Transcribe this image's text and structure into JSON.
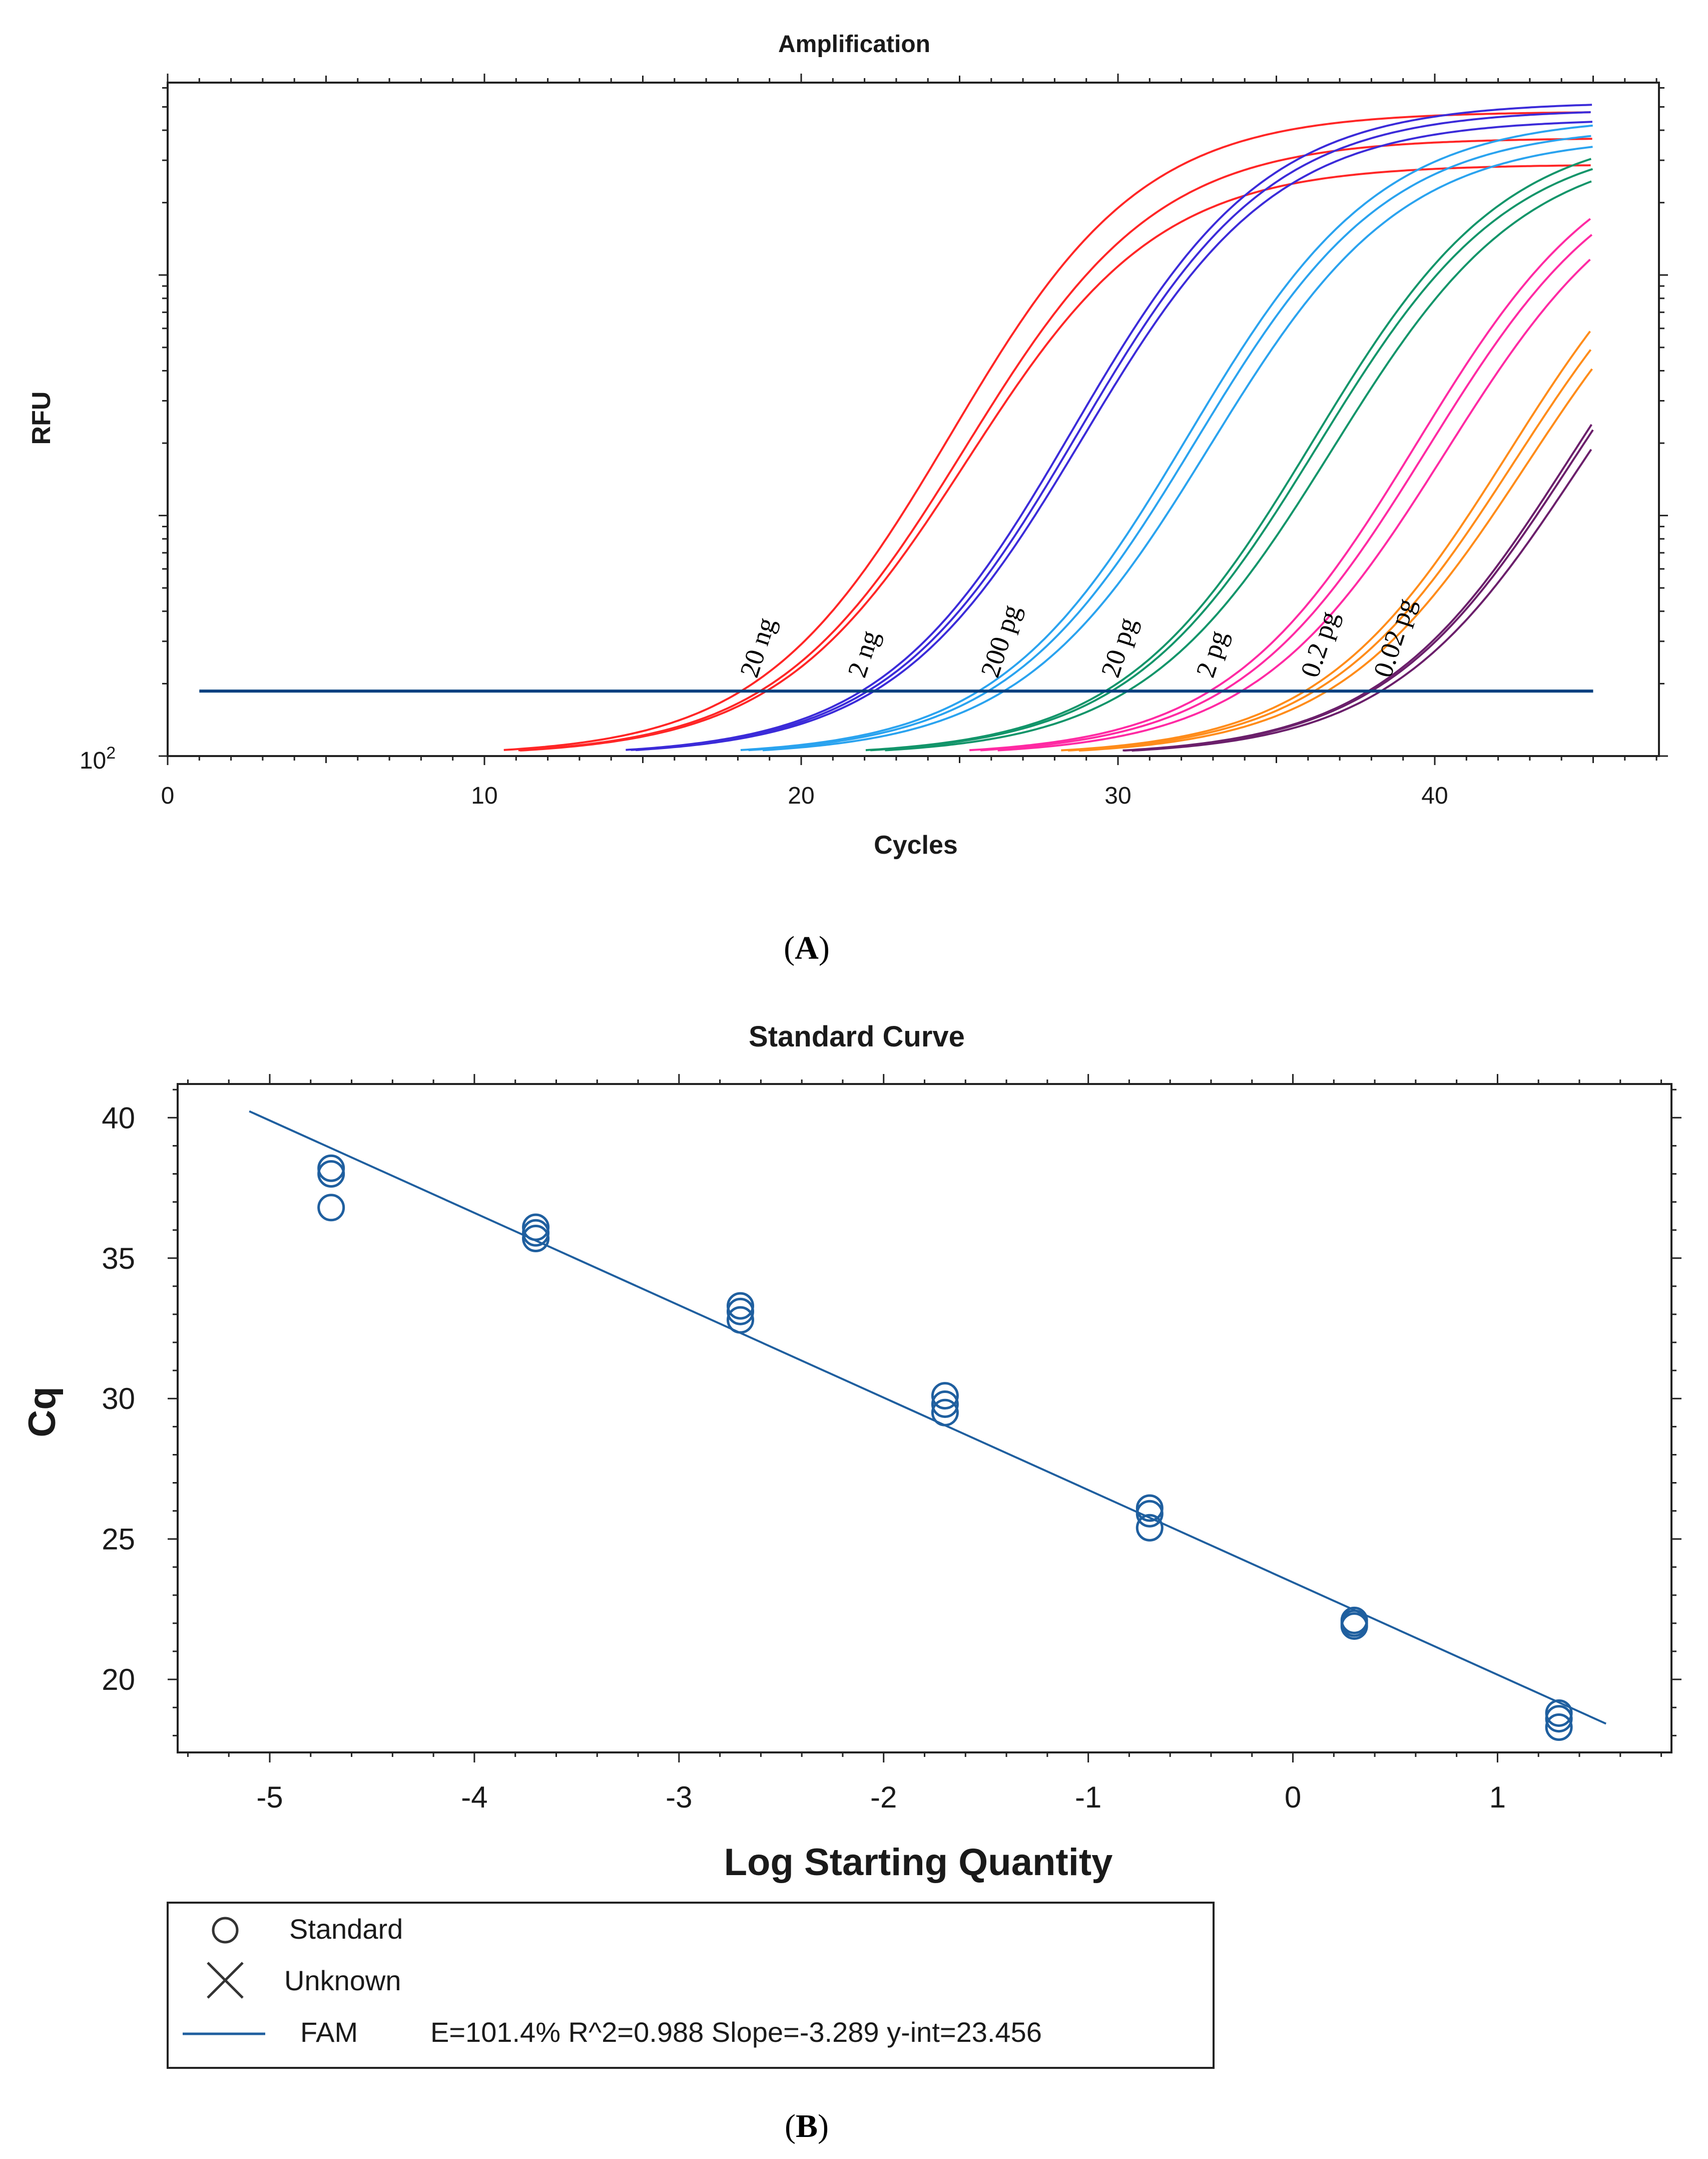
{
  "chart_data": [
    {
      "panel_label": "A",
      "type": "line",
      "title": "Amplification",
      "xlabel": "Cycles",
      "ylabel": "RFU",
      "xlim": [
        0,
        47
      ],
      "ylim_log10": [
        2.0,
        4.8
      ],
      "x_ticks": [
        0,
        10,
        20,
        30,
        40
      ],
      "x_tick_labels": [
        "0",
        "10",
        "20",
        "30",
        "40"
      ],
      "y_axis_label_base": "10",
      "y_axis_label_exponent": "2",
      "threshold_log10": 2.27,
      "threshold_x": [
        1,
        45
      ],
      "threshold_color": "#003f7f",
      "series": [
        {
          "name": "20 ng",
          "color": "#ff2626",
          "cqs": [
            18.1,
            18.7,
            18.9
          ],
          "plateau_log10": [
            4.68,
            4.57,
            4.46
          ],
          "label_x": 18.6,
          "label_log10": 2.32
        },
        {
          "name": "2 ng",
          "color": "#3b2bd9",
          "cqs": [
            21.9,
            22.1,
            22.3
          ],
          "plateau_log10": [
            4.72,
            4.69,
            4.65
          ],
          "label_x": 22.0,
          "label_log10": 2.32
        },
        {
          "name": "200 pg",
          "color": "#2aa3ef",
          "cqs": [
            25.6,
            25.9,
            26.4
          ],
          "plateau_log10": [
            4.66,
            4.62,
            4.58
          ],
          "label_x": 26.2,
          "label_log10": 2.32
        },
        {
          "name": "20 pg",
          "color": "#12956a",
          "cqs": [
            29.6,
            29.8,
            30.3
          ],
          "plateau_log10": [
            4.62,
            4.58,
            4.55
          ],
          "label_x": 30.0,
          "label_log10": 2.32
        },
        {
          "name": "2 pg",
          "color": "#ff2aa3",
          "cqs": [
            32.9,
            33.3,
            33.9
          ],
          "plateau_log10": [
            4.6,
            4.56,
            4.52
          ],
          "label_x": 33.0,
          "label_log10": 2.32
        },
        {
          "name": "0.2 pg",
          "color": "#ff8c1a",
          "cqs": [
            35.9,
            36.2,
            36.6
          ],
          "plateau_log10": [
            4.52,
            4.46,
            4.42
          ],
          "label_x": 36.3,
          "label_log10": 2.32
        },
        {
          "name": "0.02 pg",
          "color": "#6b1f6b",
          "cqs": [
            37.9,
            38.0,
            38.3
          ],
          "plateau_log10": [
            4.48,
            4.44,
            4.4
          ],
          "label_x": 38.6,
          "label_log10": 2.32
        }
      ]
    },
    {
      "panel_label": "B",
      "type": "scatter",
      "title": "Standard Curve",
      "xlabel": "Log Starting Quantity",
      "ylabel": "Cq",
      "xlim": [
        -5.45,
        1.85
      ],
      "ylim": [
        17.4,
        41.2
      ],
      "x_ticks": [
        -5,
        -4,
        -3,
        -2,
        -1,
        0,
        1
      ],
      "x_tick_labels": [
        "-5",
        "-4",
        "-3",
        "-2",
        "-1",
        "0",
        "1"
      ],
      "y_ticks": [
        20,
        25,
        30,
        35,
        40
      ],
      "y_tick_labels": [
        "20",
        "25",
        "30",
        "35",
        "40"
      ],
      "series": [
        {
          "name": "Standard",
          "color": "#1f5f9f",
          "points": [
            [
              -4.7,
              38.0
            ],
            [
              -4.7,
              38.2
            ],
            [
              -4.7,
              36.8
            ],
            [
              -3.7,
              36.1
            ],
            [
              -3.7,
              35.9
            ],
            [
              -3.7,
              35.7
            ],
            [
              -2.7,
              33.3
            ],
            [
              -2.7,
              33.1
            ],
            [
              -2.7,
              32.8
            ],
            [
              -1.7,
              30.1
            ],
            [
              -1.7,
              29.8
            ],
            [
              -1.7,
              29.5
            ],
            [
              -0.7,
              26.1
            ],
            [
              -0.7,
              25.9
            ],
            [
              -0.7,
              25.4
            ],
            [
              0.3,
              22.1
            ],
            [
              0.3,
              22.0
            ],
            [
              0.3,
              21.9
            ],
            [
              1.3,
              18.8
            ],
            [
              1.3,
              18.6
            ],
            [
              1.3,
              18.3
            ]
          ]
        }
      ],
      "fit": {
        "name": "FAM",
        "slope": -3.289,
        "intercept": 23.456,
        "x_range": [
          -5.1,
          1.53
        ],
        "color": "#1f5f9f"
      },
      "legend": {
        "placement": "bottom-left",
        "entries": [
          {
            "marker": "circle",
            "label": "Standard"
          },
          {
            "marker": "cross",
            "label": "Unknown"
          },
          {
            "marker": "line",
            "label": "FAM",
            "detail": "E=101.4% R^2=0.988 Slope=-3.289 y-int=23.456"
          }
        ]
      }
    }
  ]
}
